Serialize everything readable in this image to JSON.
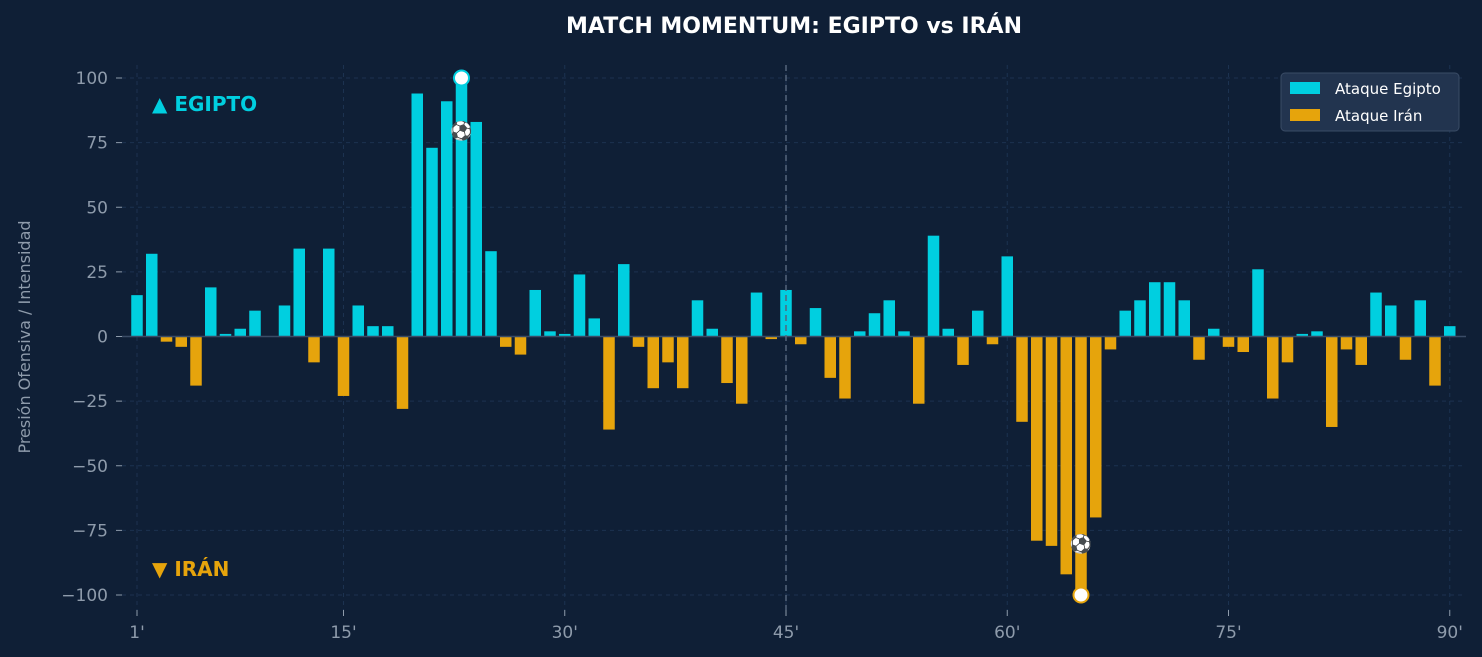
{
  "colors": {
    "background": "#0f1f36",
    "egypt": "#00cfe0",
    "iran": "#e6a40c",
    "grid": "#1c3250",
    "axis_text": "#8e9bab",
    "title": "#ffffff",
    "halftime": "#55657c",
    "legend_bg": "#22344f",
    "legend_border": "#3a4c66"
  },
  "chart_data": {
    "type": "bar",
    "title": "MATCH MOMENTUM: EGIPTO vs IRÁN",
    "ylabel": "Presión Ofensiva / Intensidad",
    "xlabel": "",
    "ylim": [
      -105,
      105
    ],
    "xlim": [
      0,
      91
    ],
    "grid": true,
    "legend_position": "top-right",
    "y_ticks": [
      100,
      75,
      50,
      25,
      0,
      -25,
      -50,
      -75,
      -100
    ],
    "y_tick_labels": [
      "100",
      "75",
      "50",
      "25",
      "0",
      "−25",
      "−50",
      "−75",
      "−100"
    ],
    "x_ticks": [
      1,
      15,
      30,
      45,
      60,
      75,
      90
    ],
    "x_tick_labels": [
      "1'",
      "15'",
      "30'",
      "45'",
      "60'",
      "75'",
      "90'"
    ],
    "halftime_minute": 45,
    "side_labels": {
      "top": "▲ EGIPTO",
      "bottom": "▼ IRÁN"
    },
    "series": [
      {
        "name": "Ataque Egipto",
        "color_key": "egypt"
      },
      {
        "name": "Ataque Irán",
        "color_key": "iran"
      }
    ],
    "minutes": [
      1,
      2,
      3,
      4,
      5,
      6,
      7,
      8,
      9,
      10,
      11,
      12,
      13,
      14,
      15,
      16,
      17,
      18,
      19,
      20,
      21,
      22,
      23,
      24,
      25,
      26,
      27,
      28,
      29,
      30,
      31,
      32,
      33,
      34,
      35,
      36,
      37,
      38,
      39,
      40,
      41,
      42,
      43,
      44,
      45,
      46,
      47,
      48,
      49,
      50,
      51,
      52,
      53,
      54,
      55,
      56,
      57,
      58,
      59,
      60,
      61,
      62,
      63,
      64,
      65,
      66,
      67,
      68,
      69,
      70,
      71,
      72,
      73,
      74,
      75,
      76,
      77,
      78,
      79,
      80,
      81,
      82,
      83,
      84,
      85,
      86,
      87,
      88,
      89,
      90
    ],
    "values": [
      16,
      32,
      -2,
      -4,
      -19,
      19,
      1,
      3,
      10,
      0,
      12,
      34,
      -10,
      34,
      -23,
      12,
      4,
      4,
      -28,
      94,
      73,
      91,
      100,
      83,
      33,
      -4,
      -7,
      18,
      2,
      1,
      24,
      7,
      -36,
      28,
      -4,
      -20,
      -10,
      -20,
      14,
      3,
      -18,
      -26,
      17,
      -1,
      18,
      -3,
      11,
      -16,
      -24,
      2,
      9,
      14,
      2,
      -26,
      39,
      3,
      -11,
      10,
      -3,
      31,
      -33,
      -79,
      -81,
      -92,
      -100,
      -70,
      -5,
      10,
      14,
      21,
      21,
      14,
      -9,
      3,
      -4,
      -6,
      26,
      -24,
      -10,
      1,
      2,
      -35,
      -5,
      -11,
      17,
      12,
      -9,
      14,
      -19,
      4
    ],
    "markers": [
      {
        "minute": 23,
        "value": 100,
        "label": "⚽",
        "series": "Ataque Egipto"
      },
      {
        "minute": 65,
        "value": -100,
        "label": "⚽",
        "series": "Ataque Irán"
      }
    ]
  }
}
